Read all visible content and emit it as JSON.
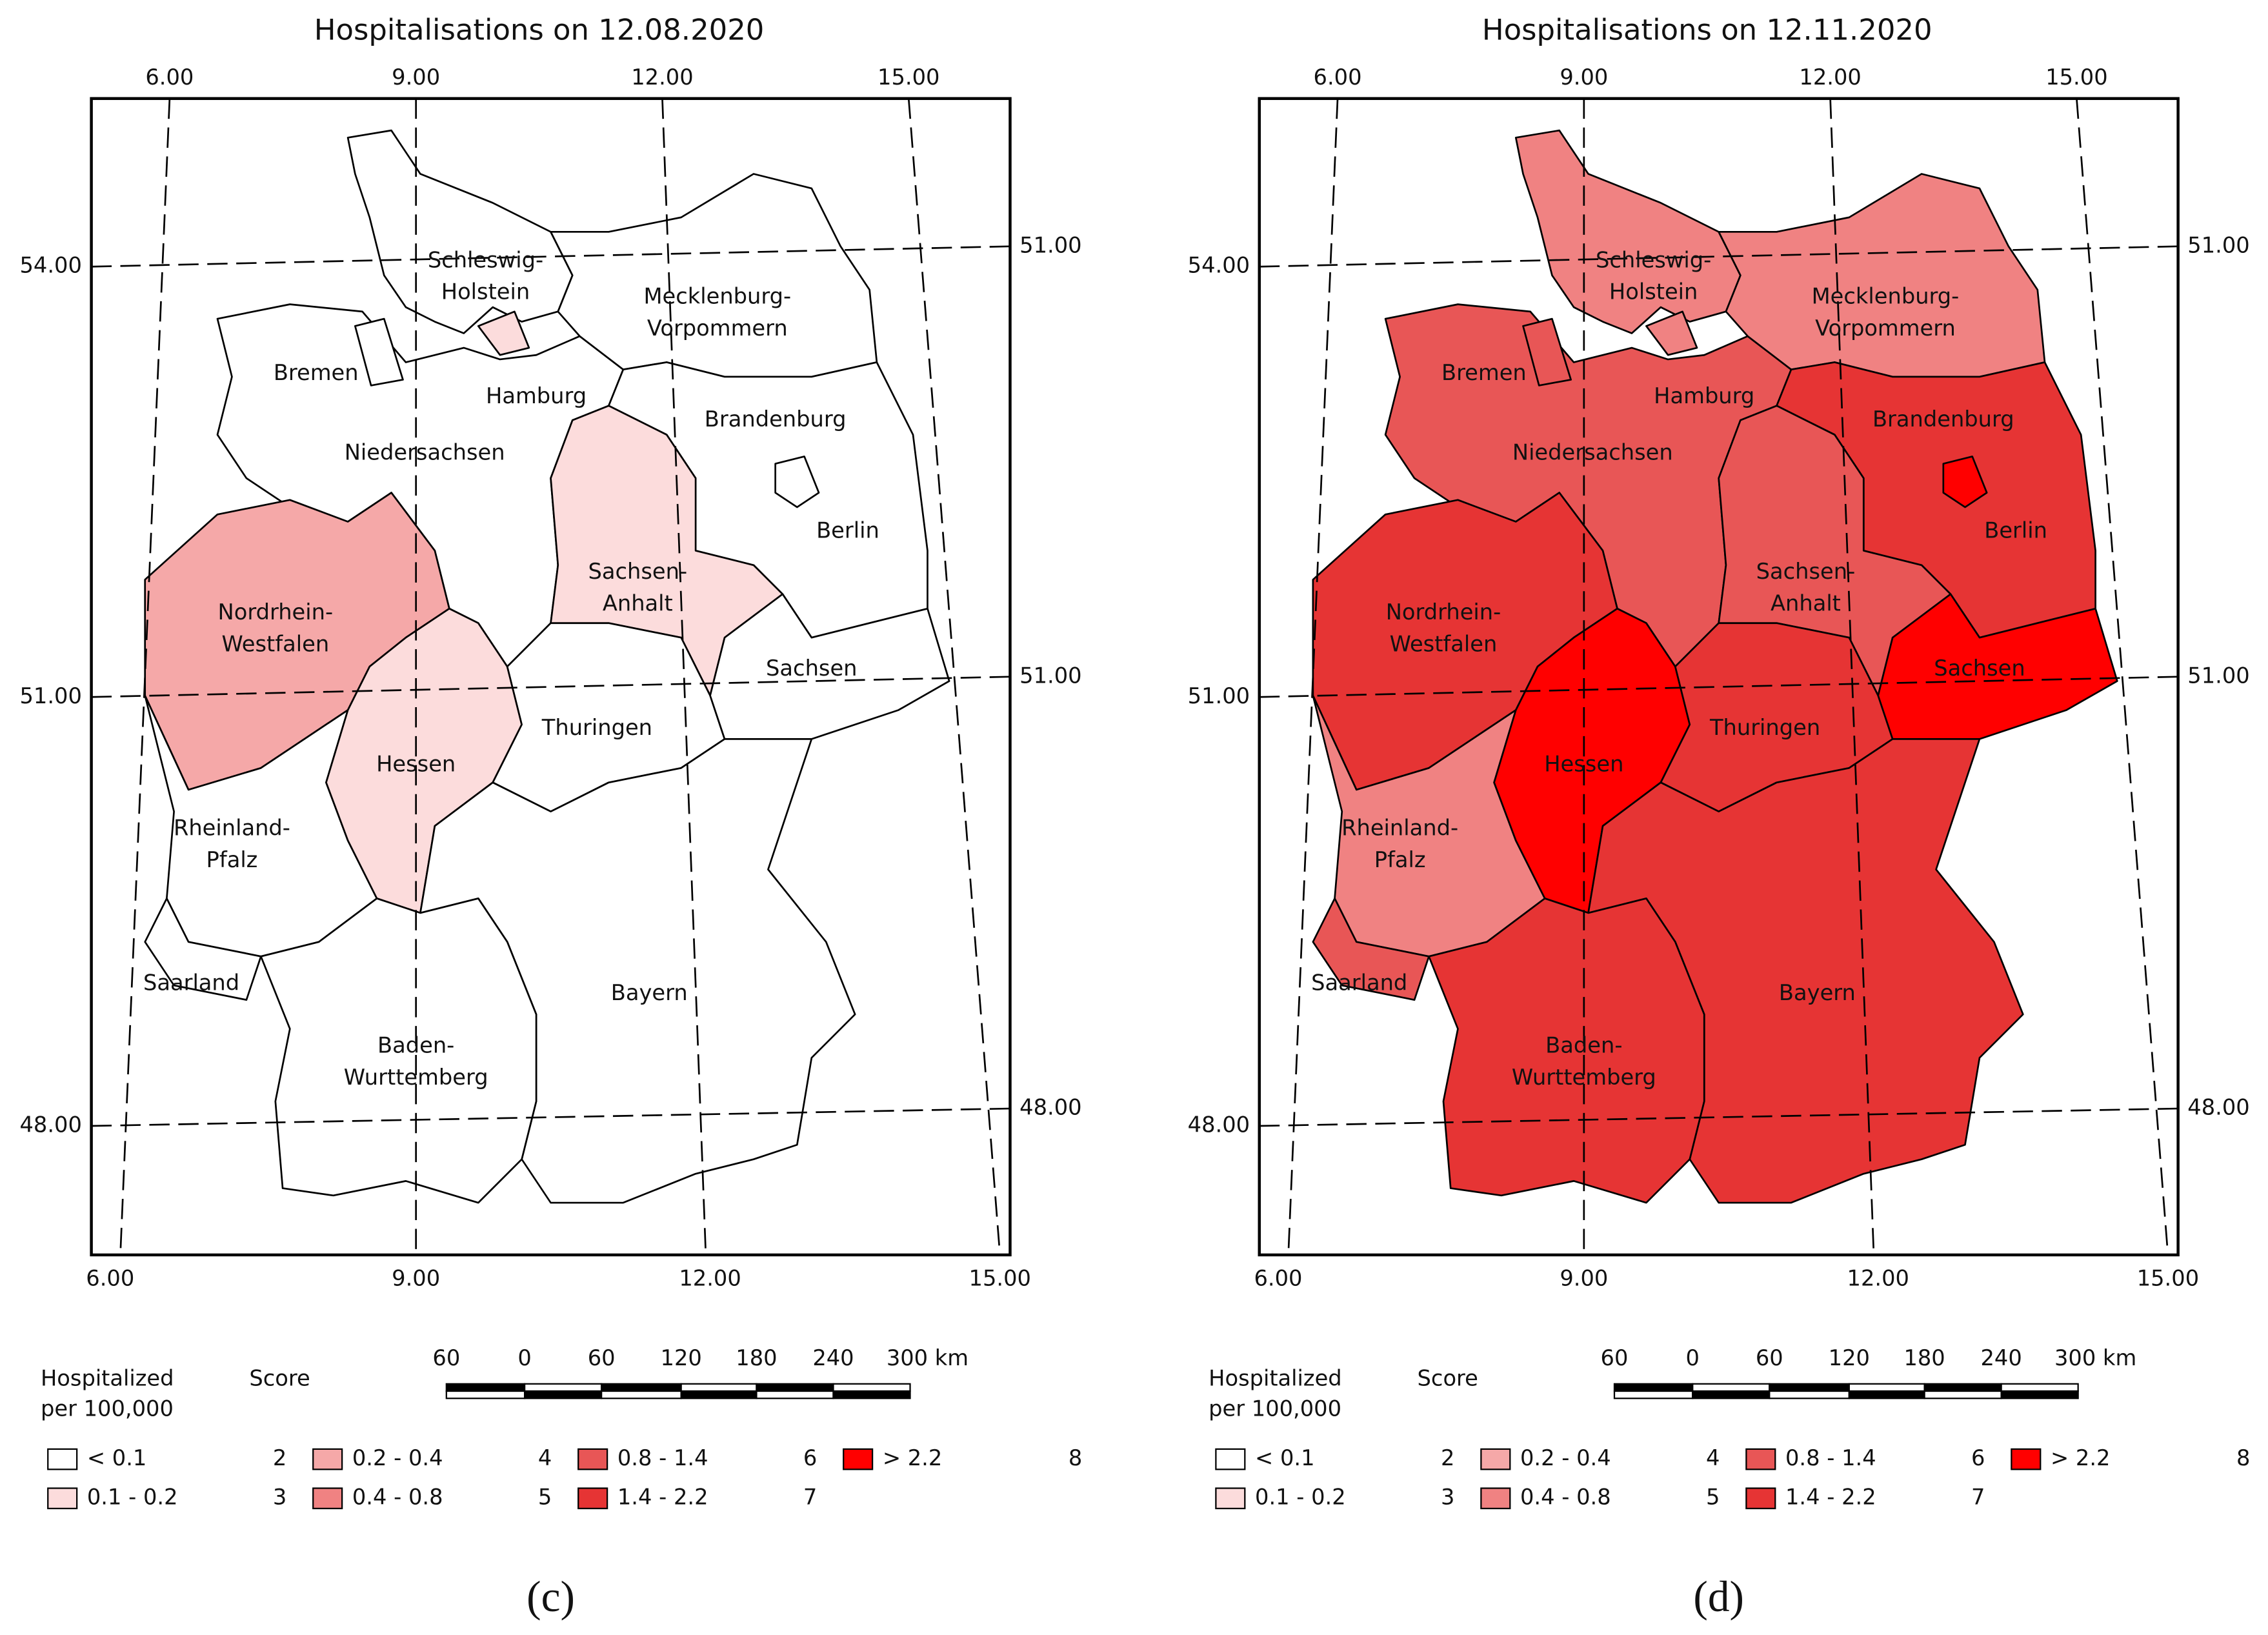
{
  "maps": [
    {
      "title": "Hospitalisations on 12.08.2020",
      "panel": "(c)",
      "top_labels": [
        "6.00",
        "9.00",
        "12.00",
        "15.00"
      ],
      "bottom_labels": [
        "6.00",
        "9.00",
        "12.00",
        "15.00"
      ],
      "left_labels": [
        "54.00",
        "51.00",
        "48.00"
      ],
      "right_labels": [
        "51.00",
        "51.00",
        "48.00"
      ],
      "regions": [
        {
          "name": "Schleswig-Holstein",
          "score": 2
        },
        {
          "name": "Hamburg",
          "score": 3
        },
        {
          "name": "Mecklenburg-Vorpommern",
          "score": 2
        },
        {
          "name": "Bremen",
          "score": 2
        },
        {
          "name": "Niedersachsen",
          "score": 2
        },
        {
          "name": "Brandenburg",
          "score": 2
        },
        {
          "name": "Berlin",
          "score": 2
        },
        {
          "name": "Sachsen-Anhalt",
          "score": 3
        },
        {
          "name": "Nordrhein-Westfalen",
          "score": 4
        },
        {
          "name": "Sachsen",
          "score": 2
        },
        {
          "name": "Thuringen",
          "score": 2
        },
        {
          "name": "Hessen",
          "score": 3
        },
        {
          "name": "Rheinland-Pfalz",
          "score": 2
        },
        {
          "name": "Saarland",
          "score": 2
        },
        {
          "name": "Bayern",
          "score": 2
        },
        {
          "name": "Baden-Wurttemberg",
          "score": 2
        }
      ]
    },
    {
      "title": "Hospitalisations on 12.11.2020",
      "panel": "(d)",
      "top_labels": [
        "6.00",
        "9.00",
        "12.00",
        "15.00"
      ],
      "bottom_labels": [
        "6.00",
        "9.00",
        "12.00",
        "15.00"
      ],
      "left_labels": [
        "54.00",
        "51.00",
        "48.00"
      ],
      "right_labels": [
        "51.00",
        "51.00",
        "48.00"
      ],
      "regions": [
        {
          "name": "Schleswig-Holstein",
          "score": 5
        },
        {
          "name": "Hamburg",
          "score": 5
        },
        {
          "name": "Mecklenburg-Vorpommern",
          "score": 5
        },
        {
          "name": "Bremen",
          "score": 6
        },
        {
          "name": "Niedersachsen",
          "score": 6
        },
        {
          "name": "Brandenburg",
          "score": 7
        },
        {
          "name": "Berlin",
          "score": 8
        },
        {
          "name": "Sachsen-Anhalt",
          "score": 6
        },
        {
          "name": "Nordrhein-Westfalen",
          "score": 7
        },
        {
          "name": "Sachsen",
          "score": 8
        },
        {
          "name": "Thuringen",
          "score": 7
        },
        {
          "name": "Hessen",
          "score": 8
        },
        {
          "name": "Rheinland-Pfalz",
          "score": 5
        },
        {
          "name": "Saarland",
          "score": 6
        },
        {
          "name": "Bayern",
          "score": 7
        },
        {
          "name": "Baden-Wurttemberg",
          "score": 7
        }
      ]
    }
  ],
  "legend": {
    "title": [
      "Hospitalized",
      "per 100,000"
    ],
    "score_title": "Score",
    "classes": [
      {
        "range": "< 0.1",
        "score": 2,
        "color": "#ffffff"
      },
      {
        "range": "0.1 - 0.2",
        "score": 3,
        "color": "#fcdcdc"
      },
      {
        "range": "0.2 - 0.4",
        "score": 4,
        "color": "#f5a8a8"
      },
      {
        "range": "0.4 - 0.8",
        "score": 5,
        "color": "#f08282"
      },
      {
        "range": "0.8 - 1.4",
        "score": 6,
        "color": "#e85656"
      },
      {
        "range": "1.4 - 2.2",
        "score": 7,
        "color": "#e63434"
      },
      {
        "range": "> 2.2",
        "score": 8,
        "color": "#ff0000"
      }
    ]
  },
  "scale_bar": [
    "60",
    "0",
    "60",
    "120",
    "180",
    "240",
    "300 km"
  ]
}
